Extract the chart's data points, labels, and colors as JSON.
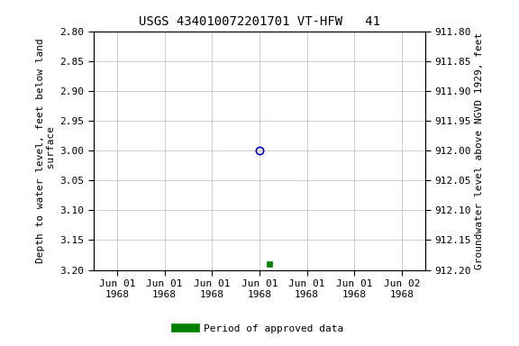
{
  "title": "USGS 434010072201701 VT-HFW   41",
  "ylabel_left": "Depth to water level, feet below land\n surface",
  "ylabel_right": "Groundwater level above NGVD 1929, feet",
  "ylim_left": [
    2.8,
    3.2
  ],
  "ylim_right": [
    911.8,
    912.2
  ],
  "yticks_left": [
    2.8,
    2.85,
    2.9,
    2.95,
    3.0,
    3.05,
    3.1,
    3.15,
    3.2
  ],
  "yticks_right": [
    911.8,
    911.85,
    911.9,
    911.95,
    912.0,
    912.05,
    912.1,
    912.15,
    912.2
  ],
  "data_point_open_depth": 3.0,
  "data_point_filled_depth": 3.19,
  "data_point_filled_color": "#008000",
  "data_point_open_color": "#0000cc",
  "legend_label": "Period of approved data",
  "legend_color": "#008000",
  "background_color": "#ffffff",
  "grid_color": "#bbbbbb",
  "title_fontsize": 10,
  "label_fontsize": 8,
  "tick_fontsize": 8,
  "xtick_labels": [
    "Jun 01\n1968",
    "Jun 01\n1968",
    "Jun 01\n1968",
    "Jun 01\n1968",
    "Jun 01\n1968",
    "Jun 01\n1968",
    "Jun 02\n1968"
  ]
}
